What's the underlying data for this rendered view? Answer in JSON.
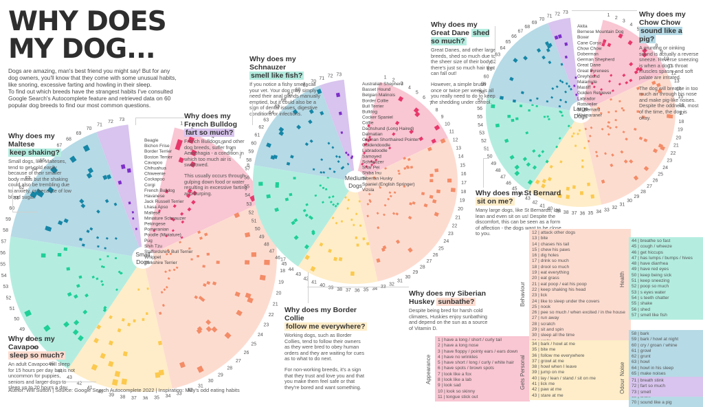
{
  "header": {
    "title_line1": "Why does",
    "title_line2": "my dog...",
    "intro_p1": "Dogs are amazing, man's best friend you might say! But for any dog owners, you'll know that they come with some unusual habits, like snoring, excessive farting and howling in their sleep.",
    "intro_p2": "To find out which breeds have the strangest habits I've consulted Google Search's Autocomplete feature and retrieved data on 60 popular dog breeds to find our most common questions."
  },
  "footer": "Author: Will Sutton | Source: Google Search Autocomplete 2022 | Inspiration: Milly's odd eating habits",
  "colors": {
    "appearance_bg": "#f9c6d3",
    "appearance_mark": "#e8386b",
    "behaviour_bg": "#fddcd0",
    "behaviour_mark": "#f38c67",
    "personal_bg": "#feedc8",
    "personal_mark": "#fcc94e",
    "health_bg": "#b4ede0",
    "health_mark": "#1fcf96",
    "noise_bg": "#b6dae6",
    "noise_mark": "#1686a6",
    "odour_bg": "#d8c4ee",
    "odour_mark": "#7d2fc9"
  },
  "annotations": [
    {
      "id": "maltese",
      "q1": "Why does my Maltese",
      "hl": "keep shaking?",
      "hlcolor": "#b4ede0",
      "p1": "Small dogs, like Malteses, tend to get cold easily because of their smaller body mass but the shaking could also be trembling due to anxiety, or because of low blood sugar.",
      "p2": ""
    },
    {
      "id": "frenchie",
      "q1": "Why does my French Bulldog",
      "hl": "fart so much?",
      "hlcolor": "#d8c4ee",
      "p1": "French Bulldogs, and other dog breeds, suffer from Aerophagia - a condition in which too much air is swallowed.",
      "p2": "This usually occurs through gulping down food or water resulting in excessive farting and burping."
    },
    {
      "id": "cavapoo",
      "q1": "Why does my Cavapoo",
      "hl": "sleep so much?",
      "hlcolor": "#fddcd0",
      "p1": "An adult Cavapoo will sleep for 15 hours per day but is not uncommon for puppies, seniors and larger dogs to sleep up to 20 hours a day.",
      "p2": ""
    },
    {
      "id": "schnauzer",
      "q1": "Why does my Schnauzer",
      "hl": "smell like fish?",
      "hlcolor": "#b4ede0",
      "p1": "If you notice a fishy smell, call your vet. Your dog may simply need their anal glands manually emptied, but it could also be a sign of dental issues, digestive conditions or infections.",
      "p2": ""
    },
    {
      "id": "collie",
      "q1": "Why does my Border Collie",
      "hl": "follow me everywhere?",
      "hlcolor": "#feedc8",
      "p1": "Working dogs, such as Border Collies, tend to follow their owners as they were bred to obey human orders and they are waiting for cues as to what to do next.",
      "p2": "For non-working breeds, it's a sign that they trust and love you and that you make them feel safe or that they're bored and want something."
    },
    {
      "id": "husky",
      "q1": "Why does my Siberian Huskey",
      "hl": "sunbathe?",
      "hlcolor": "#fddcd0",
      "p1": "Despite being bred for harsh cold climates, Huskies enjoy sunbathing and depend on the sun as a source of Vitamin D.",
      "p2": ""
    },
    {
      "id": "dane",
      "q1": "Why does my Great Dane",
      "hl": "shed so much?",
      "hlcolor": "#b4ede0",
      "p1": "Great Danes, and other large breeds, shed so much due to the sheer size of their body, there's just so much hair that can fall out!",
      "p2": "However, a simple brush once or twice per week is all you really need to do to keep the shedding under control."
    },
    {
      "id": "chow",
      "q1": "Why does my Chow Chow",
      "hl": "sound like a pig?",
      "hlcolor": "#b6dae6",
      "p1": "A grunting or oinking sound is actually a reverse sneeze. Reverse sneezing is when a dog's throat muscles spasm and soft palate are irritated.",
      "p2": "The dog will breathe in too much air through his nose and make pig-like noises. Despite the oddness, most of the time, the dog is okay."
    },
    {
      "id": "bernard",
      "q1": "Why does my St Bernard",
      "hl": "sit on me?",
      "hlcolor": "#feedc8",
      "p1": "Many large dogs, like St Bernards, lay, lean and even sit on us! Despite the discomfort, this can be seen as a form of affection - the dogs want to be close to you.",
      "p2": ""
    }
  ],
  "legend": {
    "categories": [
      {
        "name": "Appearance",
        "items": [
          "have a long / short / curly tail",
          "have a long nose",
          "have floppy / pointy ears / ears down",
          "have no wrinkles",
          "have short / long / curly / white hair",
          "have spots / brown spots",
          "look like a fox",
          "look like a lab",
          "look sad",
          "look so skinny",
          "tongue stick out"
        ],
        "start": 1
      },
      {
        "name": "Behaviour",
        "items": [
          "attack other dogs",
          "bite",
          "chases his tail",
          "chew his paws",
          "dig holes",
          "drink so much",
          "drool so much",
          "eat everything",
          "eat grass",
          "eat poop / eat his poop",
          "keep shaking his head",
          "lick",
          "like to sleep under the covers",
          "nook",
          "pee so much / when excited / in the house",
          "run away",
          "scratch",
          "sit and spin",
          "sleep all the time",
          "smile",
          "sunbathe",
          "trance"
        ],
        "start": 12
      },
      {
        "name": "Gets Personal",
        "items": [
          "bark / howl at me",
          "bite me",
          "follow me everywhere",
          "growl at me",
          "howl when I leave",
          "jump on me",
          "lay / lean / stand / sit on me",
          "lick me",
          "paw at me",
          "stare at me"
        ],
        "start": 34
      },
      {
        "name": "Health",
        "items": [
          "breathe so fast",
          "cough / wheeze",
          "get hiccups",
          "has lumps / bumps / hives",
          "have diarrhea",
          "have red eyes",
          "keep being sick",
          "keep sneezing",
          "poop so much",
          "s eyes water",
          "s teeth chatter",
          "shake",
          "shed",
          "smell like fish"
        ],
        "start": 44
      },
      {
        "name": "Noise",
        "items": [
          "bark",
          "bark / howl at night",
          "cry / groan / whine",
          "growl",
          "grunt",
          "howl",
          "howl in his sleep",
          "make noises",
          "not bark / howl / talk",
          "pant",
          "snore",
          "snort",
          "sound like a pig"
        ],
        "start": 58
      },
      {
        "name": "Odour",
        "items": [
          "breath stink",
          "fart so much",
          "smell"
        ],
        "start": 71
      }
    ]
  },
  "chart_data": [
    {
      "type": "radial-heatmap",
      "title": "Small Dogs",
      "x": "question index 1-73 (angular)",
      "y": "breed (radial)",
      "breeds": [
        "Beagle",
        "Bichon Frise",
        "Border Terrier",
        "Boston Terrier",
        "Cavapoo",
        "Chihuahua",
        "Chiweenie",
        "Cockapoo",
        "Corgi",
        "French Bulldog",
        "Havanese",
        "Jack Russell Terrier",
        "Lhasa Apso",
        "Maltese",
        "Miniature Schnauzer",
        "Pekingese",
        "Pomeranian",
        "Poodle (Miniature)",
        "Pug",
        "Shih Tzu",
        "Staffordshire Bull Terrier",
        "Whippet",
        "Yorkshire Terrier"
      ],
      "question_ticks": [
        1,
        73
      ]
    },
    {
      "type": "radial-heatmap",
      "title": "Medium Dogs",
      "breeds": [
        "Australian Shepherd",
        "Basset Hound",
        "Belgian Malinois",
        "Border Collie",
        "Bull Terrier",
        "Bulldog",
        "Cocker Spaniel",
        "Collie",
        "Dachshund (Long Haired)",
        "Dalmatian",
        "German Shorthaired Pointer",
        "Goldendoodle",
        "Labradoodle",
        "Samoyed",
        "Schnauzer",
        "Shar Pei",
        "Shiba Inu",
        "Siberian Husky",
        "Spaniel (English Springer)",
        "Vizsla"
      ],
      "question_ticks": [
        1,
        73
      ]
    },
    {
      "type": "radial-heatmap",
      "title": "Large Dogs",
      "breeds": [
        "Akita",
        "Bernese Mountain Dog",
        "Boxer",
        "Cane Corso",
        "Chow Chow",
        "Doberman",
        "German Shepherd",
        "Great Dane",
        "Great Pyrenees",
        "Greyhound",
        "Malamute",
        "Mastiff",
        "Golden Retriever",
        "Labrador",
        "Rottweiler",
        "St. Bernard",
        "Weimaraner"
      ],
      "question_ticks": [
        1,
        73
      ]
    }
  ],
  "center_labels": {
    "small_1": "Small",
    "small_2": "Dogs",
    "medium_1": "Medium",
    "medium_2": "Dogs",
    "large_1": "Large",
    "large_2": "Dogs"
  }
}
